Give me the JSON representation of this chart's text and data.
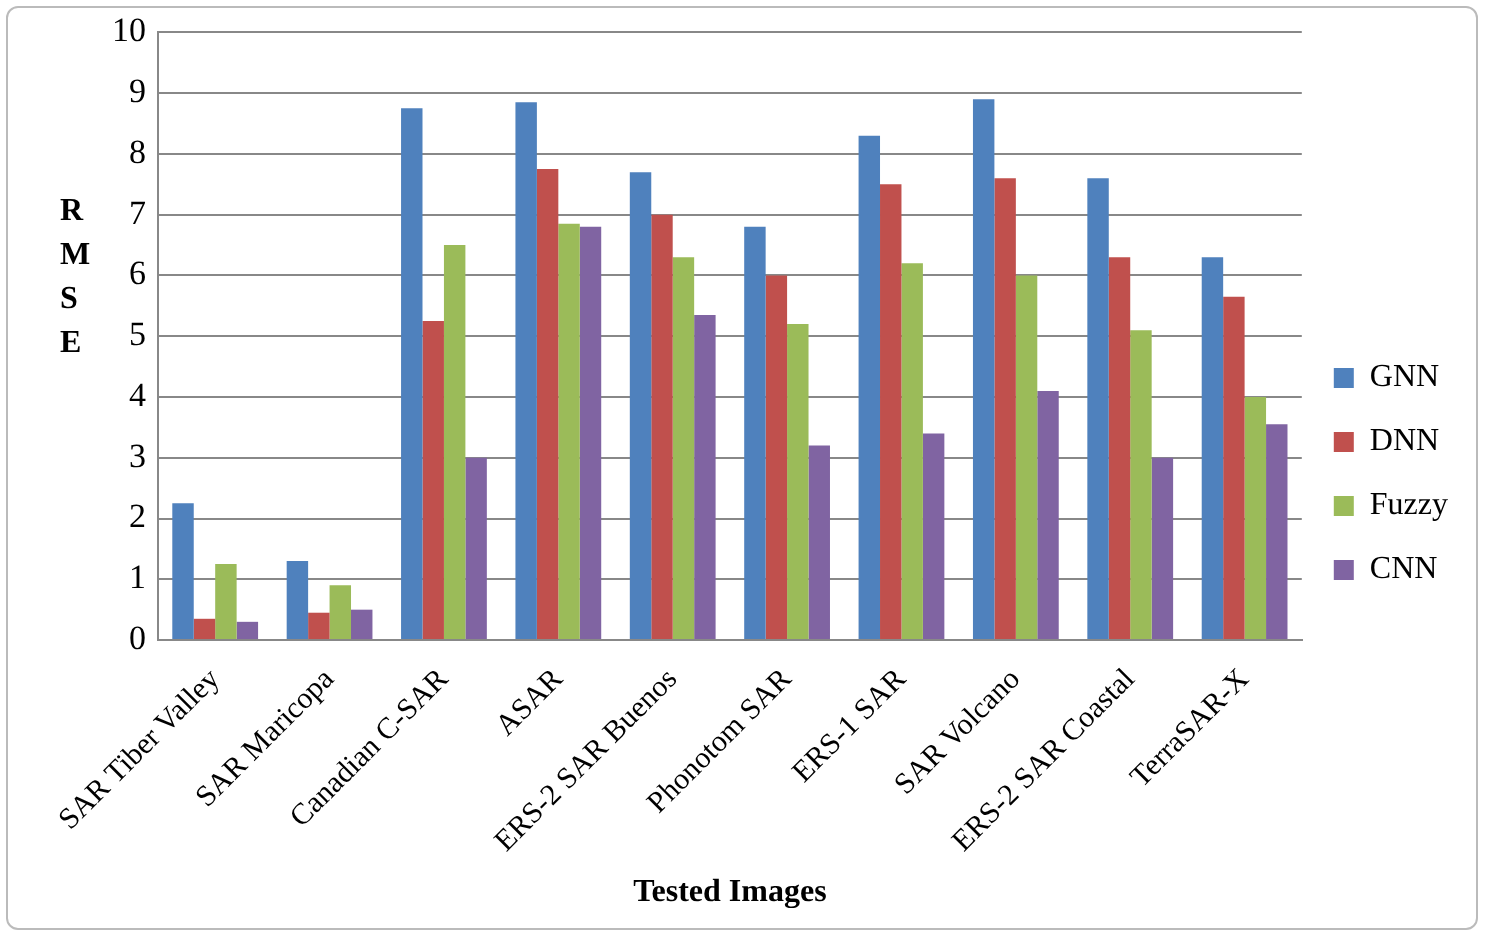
{
  "chart_data": {
    "type": "bar",
    "xlabel": "Tested Images",
    "ylabel": "RMSE",
    "categories": [
      "SAR Tiber Valley",
      "SAR Maricopa",
      "Canadian C-SAR",
      "ASAR",
      "ERS-2 SAR Buenos",
      "Phonotom SAR",
      "ERS-1 SAR",
      "SAR Volcano",
      "ERS-2 SAR Coastal",
      "TerraSAR-X"
    ],
    "series": [
      {
        "name": "GNN",
        "color": "#4f81bd",
        "values": [
          2.25,
          1.3,
          8.75,
          8.85,
          7.7,
          6.8,
          8.3,
          8.9,
          7.6,
          6.3
        ]
      },
      {
        "name": "DNN",
        "color": "#c0504d",
        "values": [
          0.35,
          0.45,
          5.25,
          7.75,
          7.0,
          6.0,
          7.5,
          7.6,
          6.3,
          5.65
        ]
      },
      {
        "name": "Fuzzy",
        "color": "#9bbb59",
        "values": [
          1.25,
          0.9,
          6.5,
          6.85,
          6.3,
          5.2,
          6.2,
          6.0,
          5.1,
          4.0
        ]
      },
      {
        "name": "CNN",
        "color": "#8064a2",
        "values": [
          0.3,
          0.5,
          3.0,
          6.8,
          5.35,
          3.2,
          3.4,
          4.1,
          3.0,
          3.55
        ]
      }
    ],
    "ylim": [
      0,
      10
    ],
    "yticks": [
      0,
      1,
      2,
      3,
      4,
      5,
      6,
      7,
      8,
      9,
      10
    ],
    "grid": "y",
    "legend": "right"
  }
}
